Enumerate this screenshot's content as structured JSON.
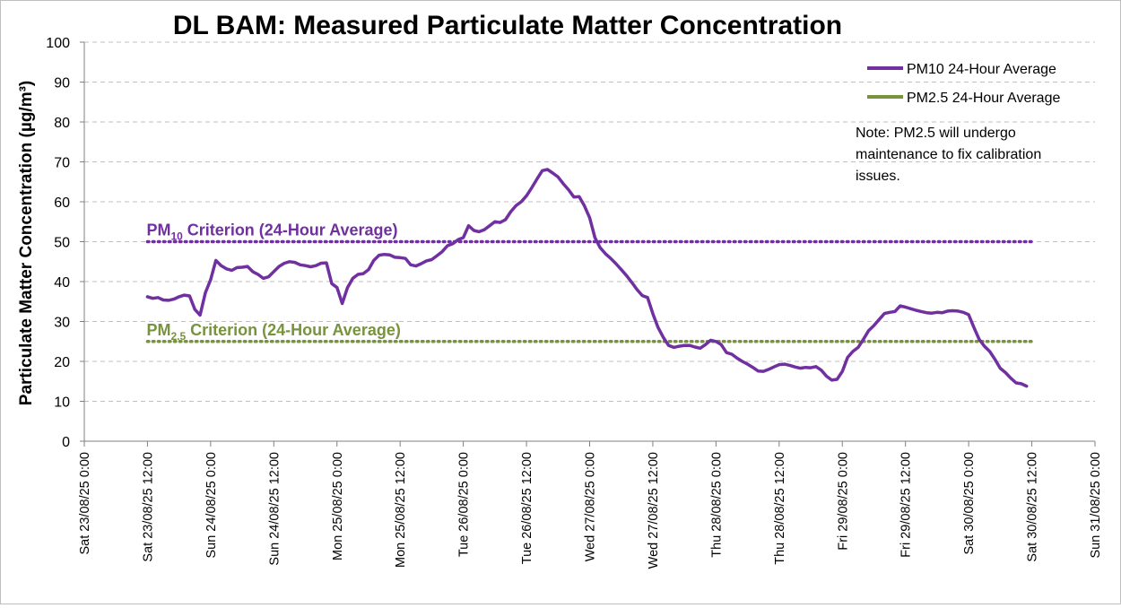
{
  "chart_data": {
    "type": "line",
    "title": "DL BAM: Measured Particulate Matter Concentration",
    "ylabel": "Particulate Matter Concentration (µg/m³)",
    "ylim": [
      0,
      100
    ],
    "y_ticks": [
      0,
      10,
      20,
      30,
      40,
      50,
      60,
      70,
      80,
      90,
      100
    ],
    "x_range": [
      "2025-08-23 00:00",
      "2025-08-31 00:00"
    ],
    "x_ticks": [
      "Sat 23/08/25 0:00",
      "Sat 23/08/25 12:00",
      "Sun 24/08/25 0:00",
      "Sun 24/08/25 12:00",
      "Mon 25/08/25 0:00",
      "Mon 25/08/25 12:00",
      "Tue 26/08/25 0:00",
      "Tue 26/08/25 12:00",
      "Wed 27/08/25 0:00",
      "Wed 27/08/25 12:00",
      "Thu 28/08/25 0:00",
      "Thu 28/08/25 12:00",
      "Fri 29/08/25 0:00",
      "Fri 29/08/25 12:00",
      "Sat 30/08/25 0:00",
      "Sat 30/08/25 12:00",
      "Sun 31/08/25 0:00"
    ],
    "grid": "horizontal dashed",
    "legend_position": "top-right",
    "legend": [
      "PM10 24-Hour Average",
      "PM2.5 24-Hour Average"
    ],
    "series": [
      {
        "name": "PM10 24-Hour Average",
        "color": "#7030a0",
        "points": [
          [
            "2025-08-23 12:00",
            36.2
          ],
          [
            "2025-08-23 13:00",
            35.8
          ],
          [
            "2025-08-23 14:00",
            36.0
          ],
          [
            "2025-08-23 15:00",
            35.4
          ],
          [
            "2025-08-23 16:00",
            35.3
          ],
          [
            "2025-08-23 17:00",
            35.6
          ],
          [
            "2025-08-23 18:00",
            36.2
          ],
          [
            "2025-08-23 19:00",
            36.6
          ],
          [
            "2025-08-23 20:00",
            36.4
          ],
          [
            "2025-08-23 21:00",
            33.0
          ],
          [
            "2025-08-23 22:00",
            31.6
          ],
          [
            "2025-08-23 23:00",
            37.2
          ],
          [
            "2025-08-24 00:00",
            40.5
          ],
          [
            "2025-08-24 01:00",
            45.3
          ],
          [
            "2025-08-24 02:00",
            44.0
          ],
          [
            "2025-08-24 03:00",
            43.2
          ],
          [
            "2025-08-24 04:00",
            42.8
          ],
          [
            "2025-08-24 05:00",
            43.5
          ],
          [
            "2025-08-24 06:00",
            43.6
          ],
          [
            "2025-08-24 07:00",
            43.8
          ],
          [
            "2025-08-24 08:00",
            42.5
          ],
          [
            "2025-08-24 09:00",
            41.8
          ],
          [
            "2025-08-24 10:00",
            40.8
          ],
          [
            "2025-08-24 11:00",
            41.2
          ],
          [
            "2025-08-24 12:00",
            42.5
          ],
          [
            "2025-08-24 13:00",
            43.8
          ],
          [
            "2025-08-24 14:00",
            44.6
          ],
          [
            "2025-08-24 15:00",
            45.0
          ],
          [
            "2025-08-24 16:00",
            44.8
          ],
          [
            "2025-08-24 17:00",
            44.2
          ],
          [
            "2025-08-24 18:00",
            44.0
          ],
          [
            "2025-08-24 19:00",
            43.7
          ],
          [
            "2025-08-24 20:00",
            44.0
          ],
          [
            "2025-08-24 21:00",
            44.6
          ],
          [
            "2025-08-24 22:00",
            44.7
          ],
          [
            "2025-08-24 23:00",
            39.5
          ],
          [
            "2025-08-25 00:00",
            38.5
          ],
          [
            "2025-08-25 01:00",
            34.5
          ],
          [
            "2025-08-25 02:00",
            38.5
          ],
          [
            "2025-08-25 03:00",
            40.8
          ],
          [
            "2025-08-25 04:00",
            41.8
          ],
          [
            "2025-08-25 05:00",
            42.0
          ],
          [
            "2025-08-25 06:00",
            43.0
          ],
          [
            "2025-08-25 07:00",
            45.3
          ],
          [
            "2025-08-25 08:00",
            46.6
          ],
          [
            "2025-08-25 09:00",
            46.8
          ],
          [
            "2025-08-25 10:00",
            46.7
          ],
          [
            "2025-08-25 11:00",
            46.1
          ],
          [
            "2025-08-25 12:00",
            46.0
          ],
          [
            "2025-08-25 13:00",
            45.8
          ],
          [
            "2025-08-25 14:00",
            44.2
          ],
          [
            "2025-08-25 15:00",
            43.9
          ],
          [
            "2025-08-25 16:00",
            44.5
          ],
          [
            "2025-08-25 17:00",
            45.2
          ],
          [
            "2025-08-25 18:00",
            45.5
          ],
          [
            "2025-08-25 19:00",
            46.5
          ],
          [
            "2025-08-25 20:00",
            47.5
          ],
          [
            "2025-08-25 21:00",
            49.0
          ],
          [
            "2025-08-25 22:00",
            49.5
          ],
          [
            "2025-08-25 23:00",
            50.5
          ],
          [
            "2025-08-26 00:00",
            51.0
          ],
          [
            "2025-08-26 01:00",
            54.0
          ],
          [
            "2025-08-26 02:00",
            52.8
          ],
          [
            "2025-08-26 03:00",
            52.5
          ],
          [
            "2025-08-26 04:00",
            53.0
          ],
          [
            "2025-08-26 05:00",
            54.0
          ],
          [
            "2025-08-26 06:00",
            55.0
          ],
          [
            "2025-08-26 07:00",
            54.8
          ],
          [
            "2025-08-26 08:00",
            55.5
          ],
          [
            "2025-08-26 09:00",
            57.5
          ],
          [
            "2025-08-26 10:00",
            59.0
          ],
          [
            "2025-08-26 11:00",
            60.0
          ],
          [
            "2025-08-26 12:00",
            61.5
          ],
          [
            "2025-08-26 13:00",
            63.5
          ],
          [
            "2025-08-26 14:00",
            65.7
          ],
          [
            "2025-08-26 15:00",
            67.8
          ],
          [
            "2025-08-26 16:00",
            68.1
          ],
          [
            "2025-08-26 17:00",
            67.2
          ],
          [
            "2025-08-26 18:00",
            66.2
          ],
          [
            "2025-08-26 19:00",
            64.5
          ],
          [
            "2025-08-26 20:00",
            63.0
          ],
          [
            "2025-08-26 21:00",
            61.2
          ],
          [
            "2025-08-26 22:00",
            61.3
          ],
          [
            "2025-08-26 23:00",
            59.0
          ],
          [
            "2025-08-27 00:00",
            56.0
          ],
          [
            "2025-08-27 01:00",
            51.0
          ],
          [
            "2025-08-27 02:00",
            48.5
          ],
          [
            "2025-08-27 03:00",
            47.0
          ],
          [
            "2025-08-27 04:00",
            45.8
          ],
          [
            "2025-08-27 05:00",
            44.5
          ],
          [
            "2025-08-27 06:00",
            43.0
          ],
          [
            "2025-08-27 07:00",
            41.5
          ],
          [
            "2025-08-27 08:00",
            39.8
          ],
          [
            "2025-08-27 09:00",
            38.0
          ],
          [
            "2025-08-27 10:00",
            36.5
          ],
          [
            "2025-08-27 11:00",
            36.0
          ],
          [
            "2025-08-27 12:00",
            32.0
          ],
          [
            "2025-08-27 13:00",
            28.5
          ],
          [
            "2025-08-27 14:00",
            26.0
          ],
          [
            "2025-08-27 15:00",
            24.0
          ],
          [
            "2025-08-27 16:00",
            23.5
          ],
          [
            "2025-08-27 17:00",
            23.8
          ],
          [
            "2025-08-27 18:00",
            24.0
          ],
          [
            "2025-08-27 19:00",
            24.0
          ],
          [
            "2025-08-27 20:00",
            23.6
          ],
          [
            "2025-08-27 21:00",
            23.3
          ],
          [
            "2025-08-27 22:00",
            24.2
          ],
          [
            "2025-08-27 23:00",
            25.3
          ],
          [
            "2025-08-28 00:00",
            25.0
          ],
          [
            "2025-08-28 01:00",
            24.2
          ],
          [
            "2025-08-28 02:00",
            22.2
          ],
          [
            "2025-08-28 03:00",
            21.8
          ],
          [
            "2025-08-28 04:00",
            20.8
          ],
          [
            "2025-08-28 05:00",
            20.0
          ],
          [
            "2025-08-28 06:00",
            19.3
          ],
          [
            "2025-08-28 07:00",
            18.5
          ],
          [
            "2025-08-28 08:00",
            17.6
          ],
          [
            "2025-08-28 09:00",
            17.5
          ],
          [
            "2025-08-28 10:00",
            18.0
          ],
          [
            "2025-08-28 11:00",
            18.6
          ],
          [
            "2025-08-28 12:00",
            19.2
          ],
          [
            "2025-08-28 13:00",
            19.3
          ],
          [
            "2025-08-28 14:00",
            19.0
          ],
          [
            "2025-08-28 15:00",
            18.6
          ],
          [
            "2025-08-28 16:00",
            18.3
          ],
          [
            "2025-08-28 17:00",
            18.5
          ],
          [
            "2025-08-28 18:00",
            18.4
          ],
          [
            "2025-08-28 19:00",
            18.7
          ],
          [
            "2025-08-28 20:00",
            17.8
          ],
          [
            "2025-08-28 21:00",
            16.3
          ],
          [
            "2025-08-28 22:00",
            15.3
          ],
          [
            "2025-08-28 23:00",
            15.5
          ],
          [
            "2025-08-29 00:00",
            17.5
          ],
          [
            "2025-08-29 01:00",
            21.0
          ],
          [
            "2025-08-29 02:00",
            22.5
          ],
          [
            "2025-08-29 03:00",
            23.5
          ],
          [
            "2025-08-29 04:00",
            25.5
          ],
          [
            "2025-08-29 05:00",
            27.7
          ],
          [
            "2025-08-29 06:00",
            29.0
          ],
          [
            "2025-08-29 07:00",
            30.5
          ],
          [
            "2025-08-29 08:00",
            32.0
          ],
          [
            "2025-08-29 09:00",
            32.3
          ],
          [
            "2025-08-29 10:00",
            32.5
          ],
          [
            "2025-08-29 11:00",
            33.9
          ],
          [
            "2025-08-29 12:00",
            33.6
          ],
          [
            "2025-08-29 13:00",
            33.2
          ],
          [
            "2025-08-29 14:00",
            32.8
          ],
          [
            "2025-08-29 15:00",
            32.5
          ],
          [
            "2025-08-29 16:00",
            32.2
          ],
          [
            "2025-08-29 17:00",
            32.1
          ],
          [
            "2025-08-29 18:00",
            32.3
          ],
          [
            "2025-08-29 19:00",
            32.2
          ],
          [
            "2025-08-29 20:00",
            32.6
          ],
          [
            "2025-08-29 21:00",
            32.7
          ],
          [
            "2025-08-29 22:00",
            32.6
          ],
          [
            "2025-08-29 23:00",
            32.3
          ],
          [
            "2025-08-30 00:00",
            31.7
          ],
          [
            "2025-08-30 01:00",
            28.5
          ],
          [
            "2025-08-30 02:00",
            25.5
          ],
          [
            "2025-08-30 03:00",
            23.8
          ],
          [
            "2025-08-30 04:00",
            22.5
          ],
          [
            "2025-08-30 05:00",
            20.5
          ],
          [
            "2025-08-30 06:00",
            18.3
          ],
          [
            "2025-08-30 07:00",
            17.2
          ],
          [
            "2025-08-30 08:00",
            15.8
          ],
          [
            "2025-08-30 09:00",
            14.6
          ],
          [
            "2025-08-30 10:00",
            14.4
          ],
          [
            "2025-08-30 11:00",
            13.8
          ]
        ]
      },
      {
        "name": "PM2.5 24-Hour Average",
        "color": "#77933c",
        "points": []
      }
    ],
    "reference_lines": [
      {
        "value": 50,
        "color": "#7030a0",
        "style": "dotted",
        "label_main": "PM",
        "label_sub": "10",
        "label_rest": " Criterion (24-Hour Average)",
        "x_start": "2025-08-23 12:00",
        "x_end": "2025-08-30 12:00"
      },
      {
        "value": 25,
        "color": "#77933c",
        "style": "dotted",
        "label_main": "PM",
        "label_sub": "2.5",
        "label_rest": " Criterion (24-Hour Average)",
        "x_start": "2025-08-23 12:00",
        "x_end": "2025-08-30 12:00"
      }
    ],
    "note_lines": [
      "Note: PM2.5 will undergo",
      "maintenance to fix calibration",
      "issues."
    ]
  }
}
